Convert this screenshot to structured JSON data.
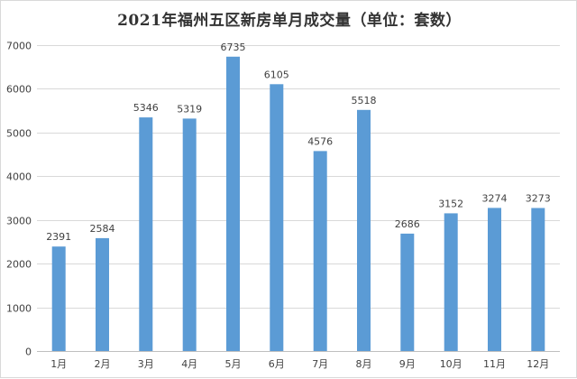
{
  "chart_data": {
    "type": "bar",
    "title": "2021年福州五区新房单月成交量（单位：套数）",
    "xlabel": "",
    "ylabel": "",
    "categories": [
      "1月",
      "2月",
      "3月",
      "4月",
      "5月",
      "6月",
      "7月",
      "8月",
      "9月",
      "10月",
      "11月",
      "12月"
    ],
    "values": [
      2391,
      2584,
      5346,
      5319,
      6735,
      6105,
      4576,
      5518,
      2686,
      3152,
      3274,
      3273
    ],
    "ylim": [
      0,
      7000
    ],
    "yticks": [
      0,
      1000,
      2000,
      3000,
      4000,
      5000,
      6000,
      7000
    ],
    "grid": true,
    "legend": "none",
    "colors": {
      "bar": "#5b9bd5",
      "grid": "#d9d9d9",
      "axis": "#bfbfbf",
      "text": "#404040"
    }
  }
}
